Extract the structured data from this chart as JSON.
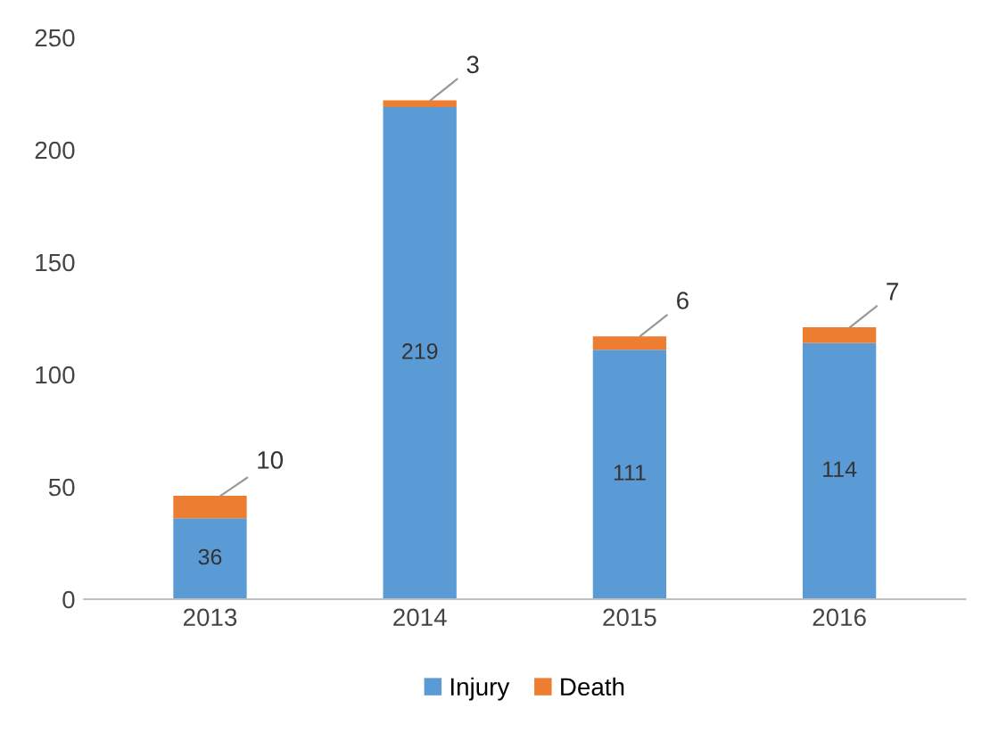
{
  "chart_data": {
    "type": "bar",
    "stacked": true,
    "categories": [
      "2013",
      "2014",
      "2015",
      "2016"
    ],
    "series": [
      {
        "name": "Injury",
        "color": "#5b9bd5",
        "values": [
          36,
          219,
          111,
          114
        ]
      },
      {
        "name": "Death",
        "color": "#ed7d31",
        "values": [
          10,
          3,
          6,
          7
        ]
      }
    ],
    "ylim": [
      0,
      250
    ],
    "yticks": [
      0,
      50,
      100,
      150,
      200,
      250
    ],
    "data_labels": true,
    "legend": "bottom",
    "grid": false
  }
}
